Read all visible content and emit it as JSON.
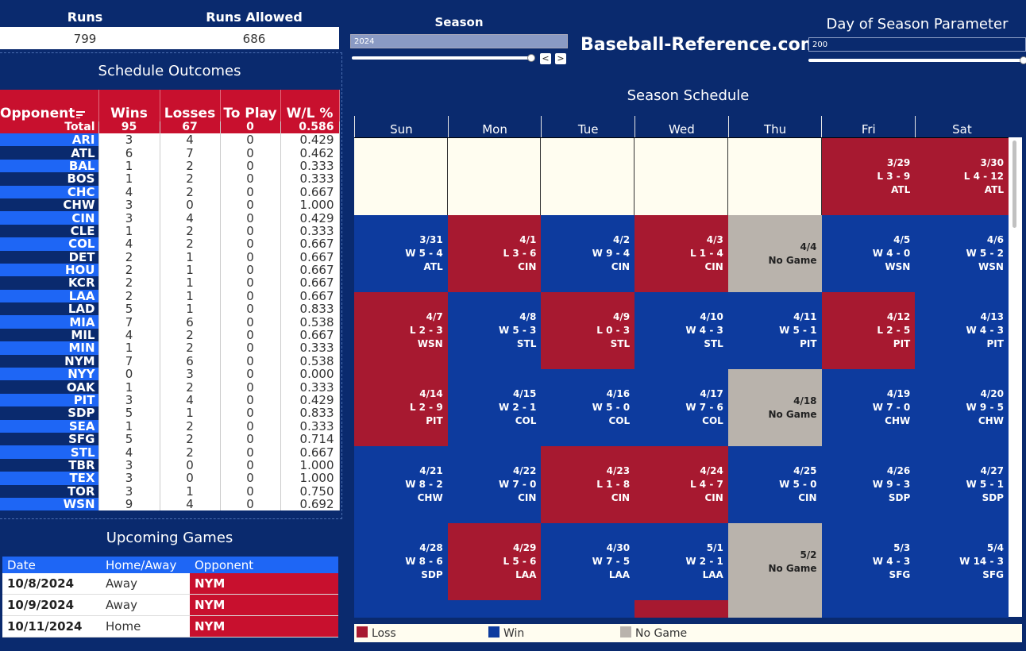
{
  "kpis": {
    "runs_label": "Runs",
    "runs_value": "799",
    "allowed_label": "Runs Allowed",
    "allowed_value": "686"
  },
  "outcomes": {
    "title": "Schedule Outcomes",
    "headers": [
      "Opponent",
      "Wins",
      "Losses",
      "To Play",
      "W/L %"
    ],
    "total": [
      "Total",
      "95",
      "67",
      "0",
      "0.586"
    ],
    "rows": [
      [
        "ARI",
        "3",
        "4",
        "0",
        "0.429"
      ],
      [
        "ATL",
        "6",
        "7",
        "0",
        "0.462"
      ],
      [
        "BAL",
        "1",
        "2",
        "0",
        "0.333"
      ],
      [
        "BOS",
        "1",
        "2",
        "0",
        "0.333"
      ],
      [
        "CHC",
        "4",
        "2",
        "0",
        "0.667"
      ],
      [
        "CHW",
        "3",
        "0",
        "0",
        "1.000"
      ],
      [
        "CIN",
        "3",
        "4",
        "0",
        "0.429"
      ],
      [
        "CLE",
        "1",
        "2",
        "0",
        "0.333"
      ],
      [
        "COL",
        "4",
        "2",
        "0",
        "0.667"
      ],
      [
        "DET",
        "2",
        "1",
        "0",
        "0.667"
      ],
      [
        "HOU",
        "2",
        "1",
        "0",
        "0.667"
      ],
      [
        "KCR",
        "2",
        "1",
        "0",
        "0.667"
      ],
      [
        "LAA",
        "2",
        "1",
        "0",
        "0.667"
      ],
      [
        "LAD",
        "5",
        "1",
        "0",
        "0.833"
      ],
      [
        "MIA",
        "7",
        "6",
        "0",
        "0.538"
      ],
      [
        "MIL",
        "4",
        "2",
        "0",
        "0.667"
      ],
      [
        "MIN",
        "1",
        "2",
        "0",
        "0.333"
      ],
      [
        "NYM",
        "7",
        "6",
        "0",
        "0.538"
      ],
      [
        "NYY",
        "0",
        "3",
        "0",
        "0.000"
      ],
      [
        "OAK",
        "1",
        "2",
        "0",
        "0.333"
      ],
      [
        "PIT",
        "3",
        "4",
        "0",
        "0.429"
      ],
      [
        "SDP",
        "5",
        "1",
        "0",
        "0.833"
      ],
      [
        "SEA",
        "1",
        "2",
        "0",
        "0.333"
      ],
      [
        "SFG",
        "5",
        "2",
        "0",
        "0.714"
      ],
      [
        "STL",
        "4",
        "2",
        "0",
        "0.667"
      ],
      [
        "TBR",
        "3",
        "0",
        "0",
        "1.000"
      ],
      [
        "TEX",
        "3",
        "0",
        "0",
        "1.000"
      ],
      [
        "TOR",
        "3",
        "1",
        "0",
        "0.750"
      ],
      [
        "WSN",
        "9",
        "4",
        "0",
        "0.692"
      ]
    ]
  },
  "upcoming": {
    "title": "Upcoming Games",
    "headers": [
      "Date",
      "Home/Away",
      "Opponent"
    ],
    "rows": [
      [
        "10/8/2024",
        "Away",
        "NYM"
      ],
      [
        "10/9/2024",
        "Away",
        "NYM"
      ],
      [
        "10/11/2024",
        "Home",
        "NYM"
      ]
    ]
  },
  "season": {
    "label": "Season",
    "value": "2024",
    "prev": "<",
    "next": ">"
  },
  "brand": "Baseball-Reference.com",
  "day_param": {
    "label": "Day of Season Parameter",
    "value": "200"
  },
  "calendar": {
    "title": "Season Schedule",
    "days": [
      "Sun",
      "Mon",
      "Tue",
      "Wed",
      "Thu",
      "Fri",
      "Sat"
    ],
    "weeks": [
      [
        null,
        null,
        null,
        null,
        null,
        {
          "t": "L",
          "d": "3/29",
          "s": "L 3 - 9",
          "o": "ATL"
        },
        {
          "t": "L",
          "d": "3/30",
          "s": "L 4 - 12",
          "o": "ATL"
        }
      ],
      [
        {
          "t": "W",
          "d": "3/31",
          "s": "W 5 - 4",
          "o": "ATL"
        },
        {
          "t": "L",
          "d": "4/1",
          "s": "L 3 - 6",
          "o": "CIN"
        },
        {
          "t": "W",
          "d": "4/2",
          "s": "W 9 - 4",
          "o": "CIN"
        },
        {
          "t": "L",
          "d": "4/3",
          "s": "L 1 - 4",
          "o": "CIN"
        },
        {
          "t": "N",
          "d": "4/4",
          "s": "No Game",
          "o": ""
        },
        {
          "t": "W",
          "d": "4/5",
          "s": "W 4 - 0",
          "o": "WSN"
        },
        {
          "t": "W",
          "d": "4/6",
          "s": "W 5 - 2",
          "o": "WSN"
        }
      ],
      [
        {
          "t": "L",
          "d": "4/7",
          "s": "L 2 - 3",
          "o": "WSN"
        },
        {
          "t": "W",
          "d": "4/8",
          "s": "W 5 - 3",
          "o": "STL"
        },
        {
          "t": "L",
          "d": "4/9",
          "s": "L 0 - 3",
          "o": "STL"
        },
        {
          "t": "W",
          "d": "4/10",
          "s": "W 4 - 3",
          "o": "STL"
        },
        {
          "t": "W",
          "d": "4/11",
          "s": "W 5 - 1",
          "o": "PIT"
        },
        {
          "t": "L",
          "d": "4/12",
          "s": "L 2 - 5",
          "o": "PIT"
        },
        {
          "t": "W",
          "d": "4/13",
          "s": "W 4 - 3",
          "o": "PIT"
        }
      ],
      [
        {
          "t": "L",
          "d": "4/14",
          "s": "L 2 - 9",
          "o": "PIT"
        },
        {
          "t": "W",
          "d": "4/15",
          "s": "W 2 - 1",
          "o": "COL"
        },
        {
          "t": "W",
          "d": "4/16",
          "s": "W 5 - 0",
          "o": "COL"
        },
        {
          "t": "W",
          "d": "4/17",
          "s": "W 7 - 6",
          "o": "COL"
        },
        {
          "t": "N",
          "d": "4/18",
          "s": "No Game",
          "o": ""
        },
        {
          "t": "W",
          "d": "4/19",
          "s": "W 7 - 0",
          "o": "CHW"
        },
        {
          "t": "W",
          "d": "4/20",
          "s": "W 9 - 5",
          "o": "CHW"
        }
      ],
      [
        {
          "t": "W",
          "d": "4/21",
          "s": "W 8 - 2",
          "o": "CHW"
        },
        {
          "t": "W",
          "d": "4/22",
          "s": "W 7 - 0",
          "o": "CIN"
        },
        {
          "t": "L",
          "d": "4/23",
          "s": "L 1 - 8",
          "o": "CIN"
        },
        {
          "t": "L",
          "d": "4/24",
          "s": "L 4 - 7",
          "o": "CIN"
        },
        {
          "t": "W",
          "d": "4/25",
          "s": "W 5 - 0",
          "o": "CIN"
        },
        {
          "t": "W",
          "d": "4/26",
          "s": "W 9 - 3",
          "o": "SDP"
        },
        {
          "t": "W",
          "d": "4/27",
          "s": "W 5 - 1",
          "o": "SDP"
        }
      ],
      [
        {
          "t": "W",
          "d": "4/28",
          "s": "W 8 - 6",
          "o": "SDP"
        },
        {
          "t": "L",
          "d": "4/29",
          "s": "L 5 - 6",
          "o": "LAA"
        },
        {
          "t": "W",
          "d": "4/30",
          "s": "W 7 - 5",
          "o": "LAA"
        },
        {
          "t": "W",
          "d": "5/1",
          "s": "W 2 - 1",
          "o": "LAA"
        },
        {
          "t": "N",
          "d": "5/2",
          "s": "No Game",
          "o": ""
        },
        {
          "t": "W",
          "d": "5/3",
          "s": "W 4 - 3",
          "o": "SFG"
        },
        {
          "t": "W",
          "d": "5/4",
          "s": "W 14 - 3",
          "o": "SFG"
        }
      ],
      [
        {
          "t": "W",
          "d": "",
          "s": "",
          "o": ""
        },
        {
          "t": "W",
          "d": "",
          "s": "",
          "o": ""
        },
        {
          "t": "W",
          "d": "",
          "s": "",
          "o": ""
        },
        {
          "t": "L",
          "d": "",
          "s": "",
          "o": ""
        },
        {
          "t": "N",
          "d": "",
          "s": "",
          "o": ""
        },
        {
          "t": "W",
          "d": "",
          "s": "",
          "o": ""
        },
        {
          "t": "W",
          "d": "",
          "s": "",
          "o": ""
        }
      ]
    ]
  },
  "legend": {
    "loss": "Loss",
    "win": "Win",
    "nogame": "No Game"
  },
  "colors": {
    "win": "#0d3b9e",
    "loss": "#a71930",
    "nogame": "#b9b3ac",
    "background": "#0a2a6e"
  }
}
